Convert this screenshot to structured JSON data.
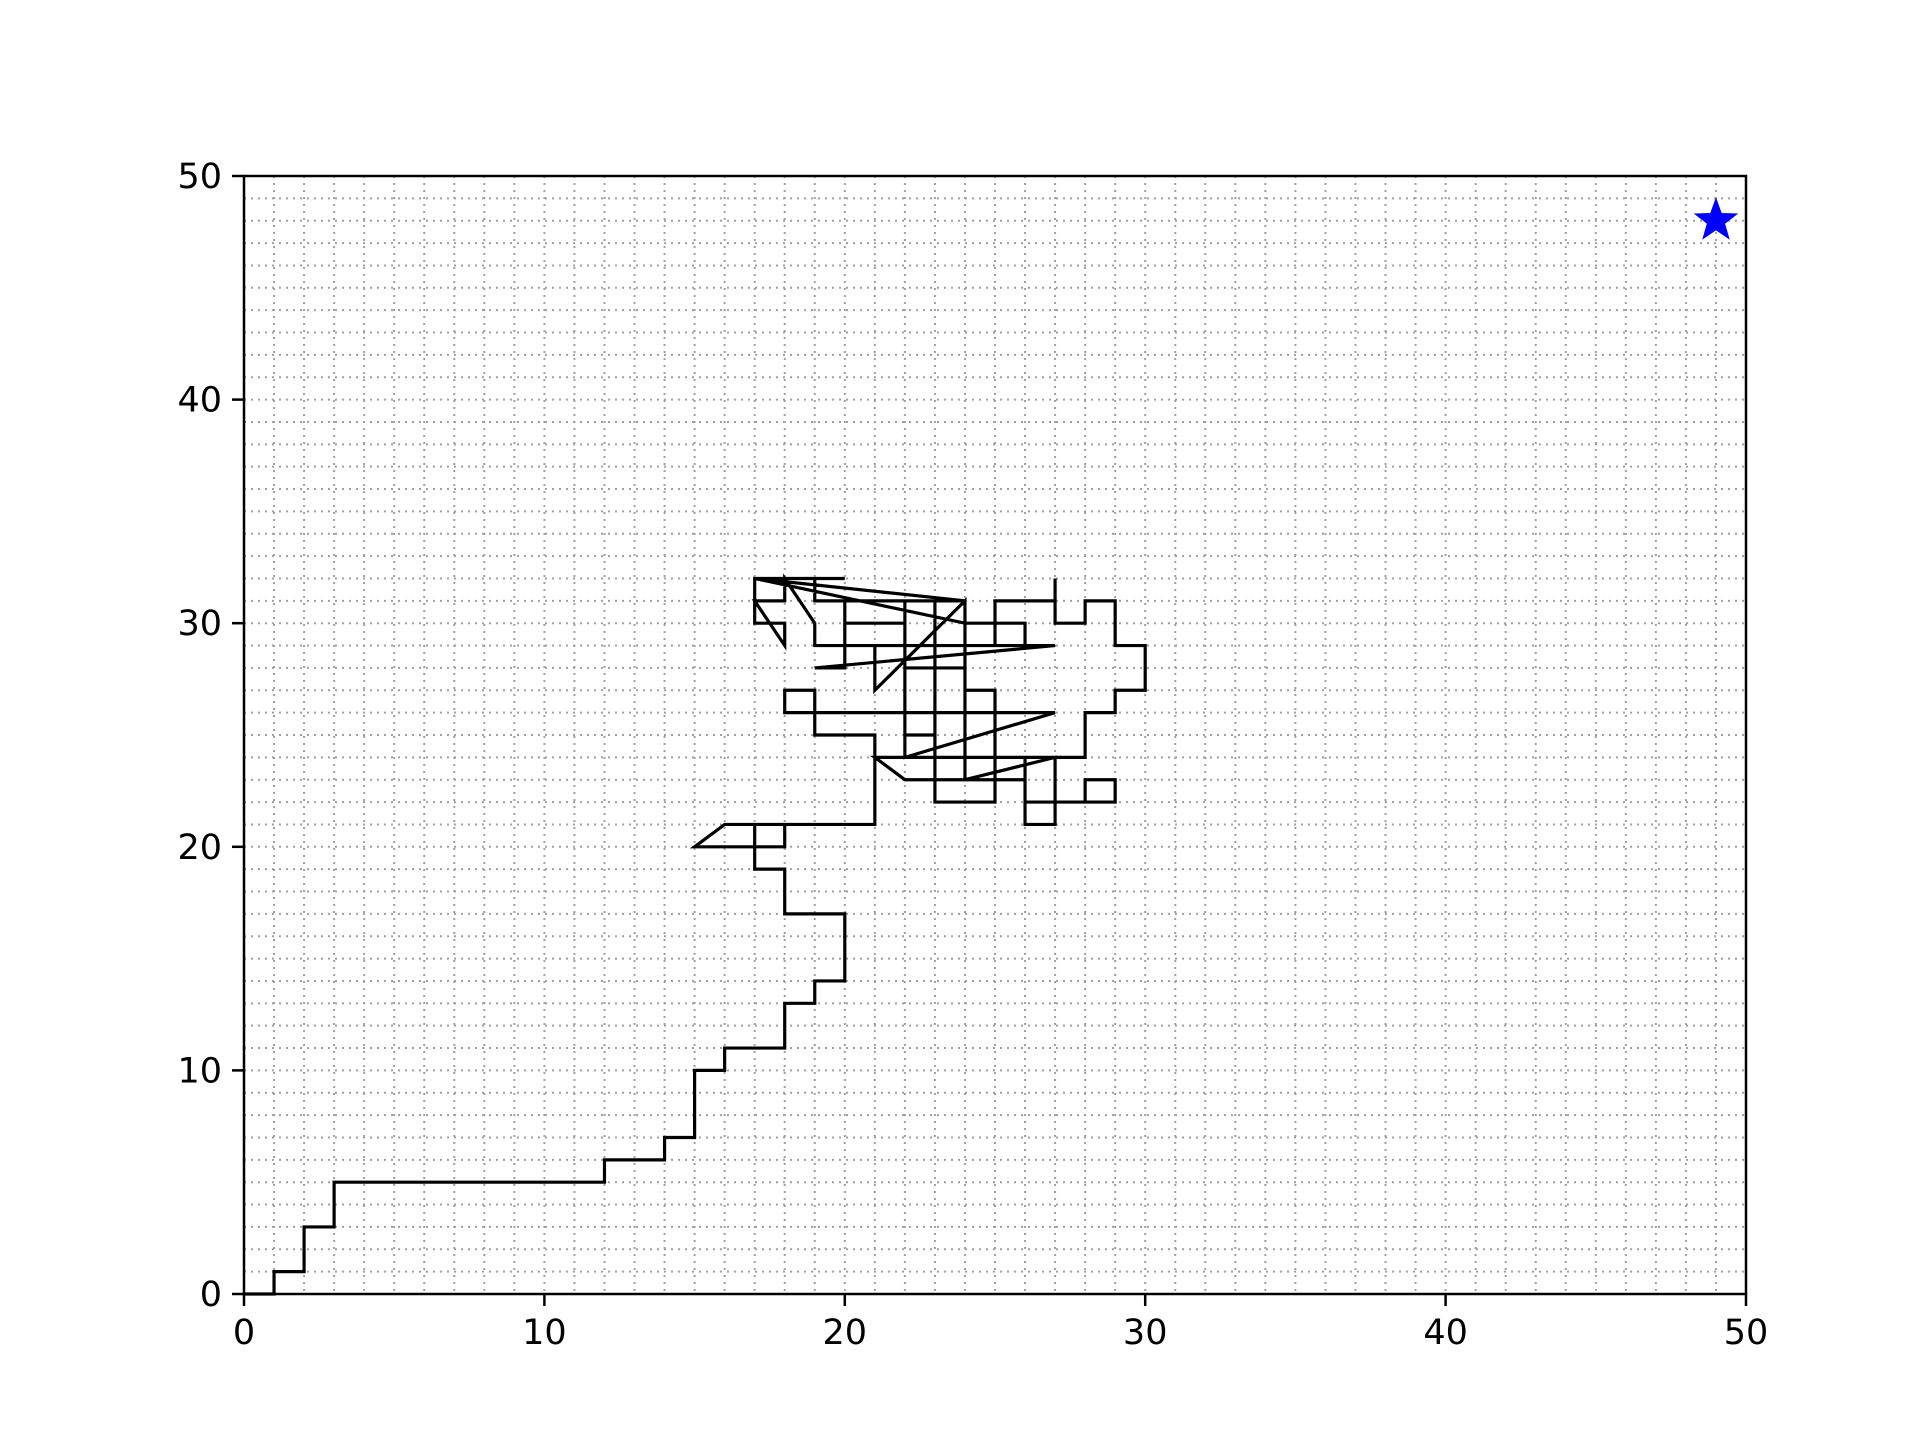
{
  "chart_data": {
    "type": "line",
    "title": "",
    "xlabel": "",
    "ylabel": "",
    "xlim": [
      0,
      50
    ],
    "ylim": [
      0,
      50
    ],
    "x_ticks": [
      0,
      10,
      20,
      30,
      40,
      50
    ],
    "y_ticks": [
      0,
      10,
      20,
      30,
      40,
      50
    ],
    "x_tick_labels": [
      "0",
      "10",
      "20",
      "30",
      "40",
      "50"
    ],
    "y_tick_labels": [
      "0",
      "10",
      "20",
      "30",
      "40",
      "50"
    ],
    "grid": "on (dotted, every 1 unit)",
    "legend": "none",
    "series": [
      {
        "color": "#000000",
        "style": "steps",
        "points": [
          [
            0,
            0
          ],
          [
            1,
            0
          ],
          [
            1,
            1
          ],
          [
            2,
            1
          ],
          [
            2,
            3
          ],
          [
            3,
            3
          ],
          [
            3,
            5
          ],
          [
            12,
            5
          ],
          [
            12,
            6
          ],
          [
            14,
            6
          ],
          [
            14,
            7
          ],
          [
            15,
            7
          ],
          [
            15,
            10
          ],
          [
            16,
            10
          ],
          [
            16,
            11
          ],
          [
            18,
            11
          ],
          [
            18,
            13
          ],
          [
            19,
            13
          ],
          [
            19,
            14
          ],
          [
            20,
            14
          ],
          [
            20,
            17
          ],
          [
            18,
            17
          ],
          [
            18,
            19
          ],
          [
            17,
            19
          ],
          [
            17,
            21
          ],
          [
            18,
            21
          ],
          [
            18,
            20
          ],
          [
            15,
            20
          ],
          [
            16,
            21
          ],
          [
            21,
            21
          ],
          [
            21,
            25
          ],
          [
            19,
            25
          ],
          [
            19,
            26
          ],
          [
            18,
            26
          ],
          [
            18,
            27
          ],
          [
            19,
            27
          ],
          [
            19,
            26
          ],
          [
            27,
            26
          ],
          [
            22,
            24
          ],
          [
            22,
            28
          ],
          [
            24,
            28
          ],
          [
            24,
            27
          ],
          [
            25,
            27
          ],
          [
            25,
            22
          ],
          [
            23,
            22
          ],
          [
            23,
            31
          ],
          [
            22,
            31
          ],
          [
            22,
            29
          ],
          [
            21,
            29
          ],
          [
            21,
            27
          ],
          [
            24,
            31
          ],
          [
            24,
            23
          ],
          [
            22,
            23
          ],
          [
            21,
            24
          ],
          [
            28,
            24
          ],
          [
            28,
            26
          ],
          [
            29,
            26
          ],
          [
            29,
            27
          ],
          [
            30,
            27
          ],
          [
            30,
            29
          ],
          [
            29,
            29
          ],
          [
            29,
            31
          ],
          [
            28,
            31
          ],
          [
            28,
            30
          ],
          [
            27,
            30
          ],
          [
            27,
            32
          ],
          [
            27,
            31
          ],
          [
            25,
            31
          ],
          [
            25,
            29
          ],
          [
            26,
            29
          ],
          [
            26,
            30
          ],
          [
            24,
            30
          ],
          [
            17,
            32
          ],
          [
            20,
            32
          ],
          [
            19,
            32
          ],
          [
            19,
            31
          ],
          [
            24,
            31
          ],
          [
            17,
            32
          ],
          [
            17,
            30
          ],
          [
            18,
            30
          ],
          [
            18,
            29
          ],
          [
            17,
            31
          ],
          [
            18,
            31
          ],
          [
            18,
            32
          ],
          [
            19,
            30
          ],
          [
            19,
            29
          ],
          [
            27,
            29
          ],
          [
            19,
            28
          ],
          [
            20,
            28
          ],
          [
            20,
            31
          ],
          [
            20,
            30
          ],
          [
            22,
            30
          ],
          [
            22,
            25
          ],
          [
            23,
            25
          ],
          [
            23,
            24
          ],
          [
            26,
            24
          ],
          [
            26,
            21
          ],
          [
            27,
            21
          ],
          [
            27,
            24
          ],
          [
            24,
            23
          ],
          [
            26,
            23
          ],
          [
            26,
            22
          ],
          [
            29,
            22
          ],
          [
            29,
            23
          ],
          [
            28,
            23
          ],
          [
            28,
            22
          ]
        ]
      },
      {
        "color": "#0000ff",
        "style": "marker-star",
        "points": [
          [
            49,
            48
          ]
        ]
      }
    ]
  }
}
